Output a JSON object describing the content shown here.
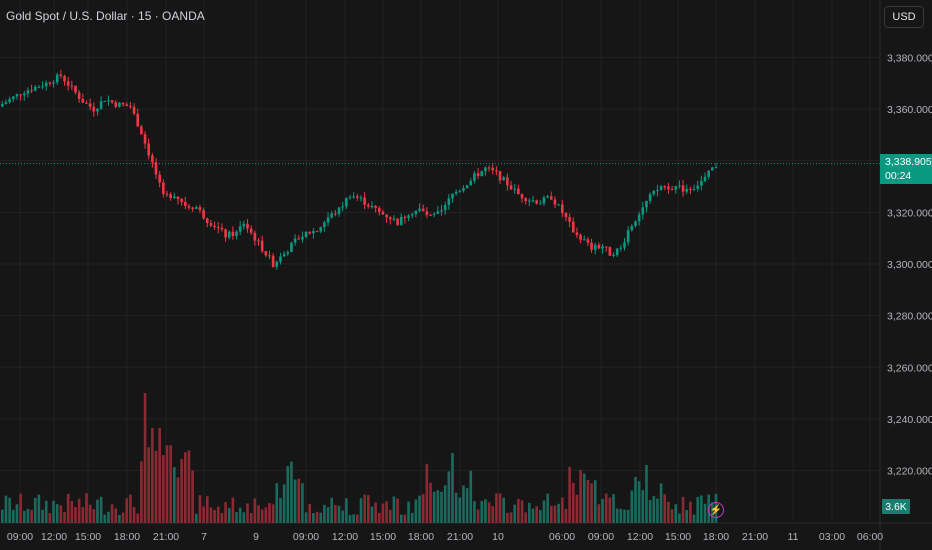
{
  "header": {
    "symbol": "Gold Spot / U.S. Dollar · 15 · OANDA",
    "currency": "USD"
  },
  "price_tag": {
    "price": "3,338.905",
    "countdown": "00:24"
  },
  "volume_tag": "3.6K",
  "colors": {
    "up": "#089981",
    "down": "#f23645",
    "background": "#161616",
    "grid": "#222222",
    "current_line": "#089981"
  },
  "chart_data": {
    "type": "candlestick",
    "title": "Gold Spot / U.S. Dollar · 15 · OANDA",
    "ylim": [
      3200,
      3400
    ],
    "y_ticks": [
      3380,
      3360,
      3340,
      3320,
      3300,
      3280,
      3260,
      3240,
      3220
    ],
    "y_tick_labels": [
      "3,380.000",
      "3,360.000",
      "3,340.000",
      "3,320.000",
      "3,300.000",
      "3,280.000",
      "3,260.000",
      "3,240.000",
      "3,220.000"
    ],
    "x_tick_labels": [
      "09:00",
      "12:00",
      "15:00",
      "18:00",
      "21:00",
      "7",
      "9",
      "09:00",
      "12:00",
      "15:00",
      "18:00",
      "21:00",
      "10",
      "06:00",
      "09:00",
      "12:00",
      "15:00",
      "18:00",
      "21:00",
      "11",
      "03:00",
      "06:00"
    ],
    "current_price": 3338.905,
    "close_path": [
      [
        0,
        3362
      ],
      [
        6,
        3367
      ],
      [
        12,
        3370
      ],
      [
        16,
        3373
      ],
      [
        19,
        3368
      ],
      [
        22,
        3363
      ],
      [
        25,
        3360
      ],
      [
        28,
        3364
      ],
      [
        31,
        3362
      ],
      [
        35,
        3361
      ],
      [
        38,
        3351
      ],
      [
        41,
        3339
      ],
      [
        44,
        3326
      ],
      [
        47,
        3327
      ],
      [
        50,
        3323
      ],
      [
        53,
        3322
      ],
      [
        56,
        3317
      ],
      [
        58,
        3315
      ],
      [
        61,
        3311
      ],
      [
        64,
        3312
      ],
      [
        66,
        3316
      ],
      [
        68,
        3312
      ],
      [
        71,
        3306
      ],
      [
        74,
        3300
      ],
      [
        77,
        3304
      ],
      [
        80,
        3309
      ],
      [
        83,
        3312
      ],
      [
        86,
        3313
      ],
      [
        89,
        3318
      ],
      [
        92,
        3321
      ],
      [
        95,
        3327
      ],
      [
        98,
        3325
      ],
      [
        100,
        3323
      ],
      [
        103,
        3320
      ],
      [
        106,
        3318
      ],
      [
        108,
        3316
      ],
      [
        111,
        3320
      ],
      [
        114,
        3321
      ],
      [
        117,
        3318
      ],
      [
        120,
        3320
      ],
      [
        123,
        3327
      ],
      [
        126,
        3330
      ],
      [
        129,
        3334
      ],
      [
        132,
        3337
      ],
      [
        135,
        3335
      ],
      [
        138,
        3331
      ],
      [
        141,
        3327
      ],
      [
        144,
        3325
      ],
      [
        147,
        3324
      ],
      [
        150,
        3326
      ],
      [
        153,
        3320
      ],
      [
        156,
        3313
      ],
      [
        159,
        3309
      ],
      [
        161,
        3306
      ],
      [
        164,
        3307
      ],
      [
        166,
        3304
      ],
      [
        169,
        3306
      ],
      [
        171,
        3313
      ],
      [
        174,
        3320
      ],
      [
        177,
        3326
      ],
      [
        180,
        3330
      ],
      [
        183,
        3330
      ],
      [
        186,
        3329
      ],
      [
        189,
        3330
      ],
      [
        192,
        3333
      ],
      [
        194,
        3337
      ]
    ]
  }
}
